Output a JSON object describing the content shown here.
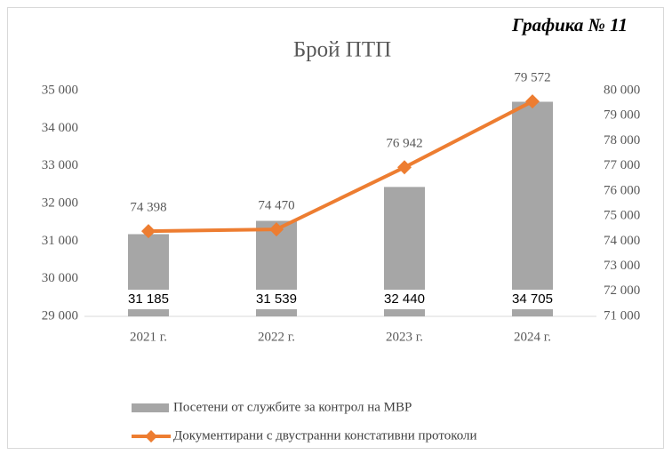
{
  "chart_data": {
    "type": "bar",
    "title": "Брой ПТП",
    "annotation": "Графика № 11",
    "categories": [
      "2021 г.",
      "2022 г.",
      "2023 г.",
      "2024 г."
    ],
    "series": [
      {
        "name": "Посетени от службите за контрол на МВР",
        "type": "bar",
        "color": "#a6a6a6",
        "values": [
          31185,
          31539,
          32440,
          34705
        ],
        "value_labels": [
          "31 185",
          "31 539",
          "32 440",
          "34 705"
        ]
      },
      {
        "name": "Документирани с двустранни констативни протоколи",
        "type": "line",
        "axis": "y2",
        "color": "#ed7d31",
        "values": [
          74398,
          74470,
          76942,
          79572
        ],
        "value_labels": [
          "74 398",
          "74 470",
          "76 942",
          "79 572"
        ]
      }
    ],
    "ylim": [
      29000,
      35000
    ],
    "yticks": [
      {
        "value": 29000,
        "label": "29 000"
      },
      {
        "value": 30000,
        "label": "30 000"
      },
      {
        "value": 31000,
        "label": "31 000"
      },
      {
        "value": 32000,
        "label": "32 000"
      },
      {
        "value": 33000,
        "label": "33 000"
      },
      {
        "value": 34000,
        "label": "34 000"
      },
      {
        "value": 35000,
        "label": "35 000"
      }
    ],
    "y2lim": [
      71000,
      80000
    ],
    "y2ticks": [
      {
        "value": 71000,
        "label": "71 000"
      },
      {
        "value": 72000,
        "label": "72 000"
      },
      {
        "value": 73000,
        "label": "73 000"
      },
      {
        "value": 74000,
        "label": "74 000"
      },
      {
        "value": 75000,
        "label": "75 000"
      },
      {
        "value": 76000,
        "label": "76 000"
      },
      {
        "value": 77000,
        "label": "77 000"
      },
      {
        "value": 78000,
        "label": "78 000"
      },
      {
        "value": 79000,
        "label": "79 000"
      },
      {
        "value": 80000,
        "label": "80 000"
      }
    ],
    "grid": false,
    "legend": "bottom"
  }
}
